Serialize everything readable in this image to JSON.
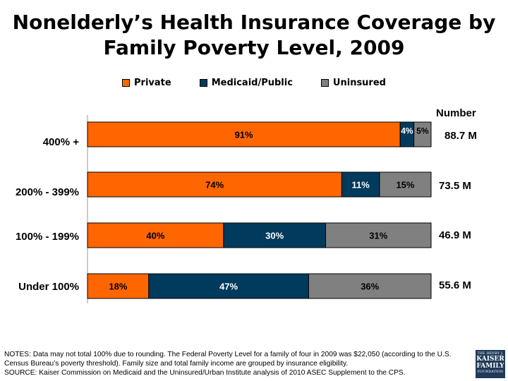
{
  "title": "Nonelderly’s Health Insurance Coverage by Family Poverty Level, 2009",
  "number_header": "Number",
  "colors": {
    "Private": "#ff6600",
    "Medicaid/Public": "#003a5d",
    "Uninsured": "#808080"
  },
  "chart_data": {
    "type": "bar",
    "orientation": "horizontal",
    "stacked": true,
    "categories": [
      "400% +",
      "200% - 399%",
      "100% - 199%",
      "Under 100%"
    ],
    "series": [
      {
        "name": "Private",
        "values": [
          91,
          74,
          40,
          18
        ],
        "labels": [
          "91%",
          "74%",
          "40%",
          "18%"
        ]
      },
      {
        "name": "Medicaid/Public",
        "values": [
          4,
          11,
          30,
          47
        ],
        "labels": [
          "4%",
          "11%",
          "30%",
          "47%"
        ]
      },
      {
        "name": "Uninsured",
        "values": [
          5,
          15,
          31,
          36
        ],
        "labels": [
          "5%",
          "15%",
          "31%",
          "36%"
        ]
      }
    ],
    "numbers": [
      "88.7 M",
      "73.5 M",
      "46.9 M",
      "55.6 M"
    ],
    "legend_position": "top",
    "grid": false
  },
  "notes": {
    "line1": "NOTES: Data may not total 100% due to rounding.  The Federal Poverty Level for a family of four in 2009 was $22,050 (according to the U.S. Census Bureau’s poverty threshold). Family size and total family income are grouped by insurance eligibility.",
    "line2": "SOURCE: Kaiser Commission on Medicaid and the Uninsured/Urban Institute analysis of 2010 ASEC Supplement to the CPS."
  },
  "logo": {
    "line1": "THE HENRY J.",
    "line2a": "KAISER",
    "line2b": "FAMILY",
    "line3": "FOUNDATION"
  }
}
